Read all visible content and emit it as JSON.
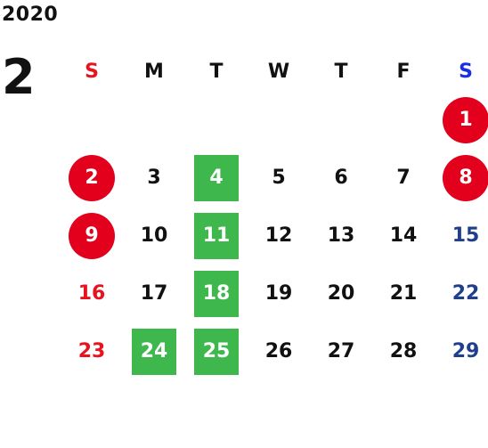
{
  "year": "2020",
  "month": "2",
  "colors": {
    "sunday_header": "#e8131f",
    "saturday_header": "#1a2ee6",
    "sunday_date": "#e8131f",
    "saturday_date": "#1f3e8c",
    "holiday_circle": "#e2001c",
    "highlight_square": "#3eb84c"
  },
  "weekdays": [
    "S",
    "M",
    "T",
    "W",
    "T",
    "F",
    "S"
  ],
  "weeks": [
    [
      {
        "label": "",
        "kind": "empty"
      },
      {
        "label": "",
        "kind": "empty"
      },
      {
        "label": "",
        "kind": "empty"
      },
      {
        "label": "",
        "kind": "empty"
      },
      {
        "label": "",
        "kind": "empty"
      },
      {
        "label": "",
        "kind": "empty"
      },
      {
        "label": "1",
        "kind": "holiday"
      }
    ],
    [
      {
        "label": "2",
        "kind": "holiday"
      },
      {
        "label": "3",
        "kind": "normal"
      },
      {
        "label": "4",
        "kind": "highlight"
      },
      {
        "label": "5",
        "kind": "normal"
      },
      {
        "label": "6",
        "kind": "normal"
      },
      {
        "label": "7",
        "kind": "normal"
      },
      {
        "label": "8",
        "kind": "holiday"
      }
    ],
    [
      {
        "label": "9",
        "kind": "holiday"
      },
      {
        "label": "10",
        "kind": "normal"
      },
      {
        "label": "11",
        "kind": "highlight"
      },
      {
        "label": "12",
        "kind": "normal"
      },
      {
        "label": "13",
        "kind": "normal"
      },
      {
        "label": "14",
        "kind": "normal"
      },
      {
        "label": "15",
        "kind": "normal"
      }
    ],
    [
      {
        "label": "16",
        "kind": "normal"
      },
      {
        "label": "17",
        "kind": "normal"
      },
      {
        "label": "18",
        "kind": "highlight"
      },
      {
        "label": "19",
        "kind": "normal"
      },
      {
        "label": "20",
        "kind": "normal"
      },
      {
        "label": "21",
        "kind": "normal"
      },
      {
        "label": "22",
        "kind": "normal"
      }
    ],
    [
      {
        "label": "23",
        "kind": "normal"
      },
      {
        "label": "24",
        "kind": "highlight"
      },
      {
        "label": "25",
        "kind": "highlight"
      },
      {
        "label": "26",
        "kind": "normal"
      },
      {
        "label": "27",
        "kind": "normal"
      },
      {
        "label": "28",
        "kind": "normal"
      },
      {
        "label": "29",
        "kind": "normal"
      }
    ]
  ]
}
